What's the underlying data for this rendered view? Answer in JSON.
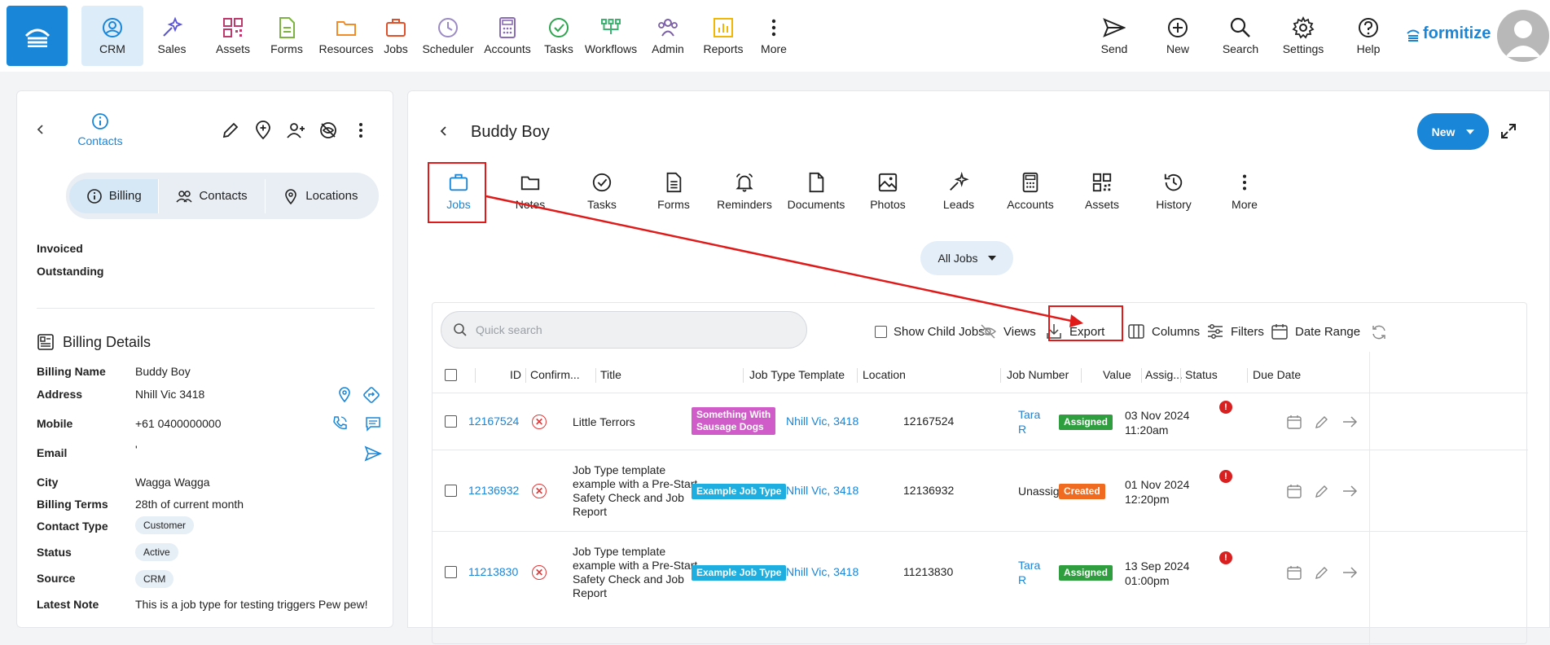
{
  "nav": {
    "items": [
      {
        "label": "CRM",
        "icon": "crm-icon",
        "color": "#1a86d8"
      },
      {
        "label": "Sales",
        "icon": "sales-icon",
        "color": "#5a55d6"
      },
      {
        "label": "Assets",
        "icon": "assets-icon",
        "color": "#c0396b"
      },
      {
        "label": "Forms",
        "icon": "forms-icon",
        "color": "#7cb342"
      },
      {
        "label": "Resources",
        "icon": "folder-icon",
        "color": "#f28c28"
      },
      {
        "label": "Jobs",
        "icon": "briefcase-icon",
        "color": "#e0502a"
      },
      {
        "label": "Scheduler",
        "icon": "clock-icon",
        "color": "#9b8ac4"
      },
      {
        "label": "Accounts",
        "icon": "calculator-icon",
        "color": "#8a6bb5"
      },
      {
        "label": "Tasks",
        "icon": "check-circle-icon",
        "color": "#2ea44f"
      },
      {
        "label": "Workflows",
        "icon": "workflow-icon",
        "color": "#3cb371"
      },
      {
        "label": "Admin",
        "icon": "people-icon",
        "color": "#7b5ea7"
      },
      {
        "label": "Reports",
        "icon": "chart-icon",
        "color": "#f2b705"
      },
      {
        "label": "More",
        "icon": "more-vertical-icon",
        "color": "#222222"
      }
    ],
    "right": [
      {
        "label": "Send",
        "icon": "send-icon"
      },
      {
        "label": "New",
        "icon": "plus-circle-icon"
      },
      {
        "label": "Search",
        "icon": "search-icon"
      },
      {
        "label": "Settings",
        "icon": "gear-icon"
      },
      {
        "label": "Help",
        "icon": "help-icon"
      }
    ],
    "brand": "formitize",
    "brand_color": "#1a86d8"
  },
  "left": {
    "header_label": "Contacts",
    "tabs": [
      {
        "label": "Billing"
      },
      {
        "label": "Contacts"
      },
      {
        "label": "Locations"
      }
    ],
    "summary": [
      {
        "label": "Invoiced"
      },
      {
        "label": "Outstanding"
      }
    ],
    "billing_title": "Billing Details",
    "fields": {
      "billing_name": {
        "label": "Billing Name",
        "value": "Buddy Boy"
      },
      "address": {
        "label": "Address",
        "value": "Nhill Vic 3418"
      },
      "mobile": {
        "label": "Mobile",
        "value": "+61 0400000000"
      },
      "email": {
        "label": "Email",
        "value": "'"
      },
      "city": {
        "label": "City",
        "value": "Wagga Wagga"
      },
      "billing_terms": {
        "label": "Billing Terms",
        "value": "28th of current month"
      },
      "contact_type": {
        "label": "Contact Type",
        "value": "Customer"
      },
      "status": {
        "label": "Status",
        "value": "Active"
      },
      "source": {
        "label": "Source",
        "value": "CRM"
      },
      "latest_note": {
        "label": "Latest Note",
        "value": "This is a job type for testing triggers Pew pew!"
      }
    }
  },
  "right": {
    "title": "Buddy Boy",
    "new_button": "New",
    "tabs": [
      {
        "label": "Jobs",
        "icon": "briefcase-icon"
      },
      {
        "label": "Notes",
        "icon": "note-icon"
      },
      {
        "label": "Tasks",
        "icon": "check-circle-icon"
      },
      {
        "label": "Forms",
        "icon": "document-icon"
      },
      {
        "label": "Reminders",
        "icon": "bell-icon"
      },
      {
        "label": "Documents",
        "icon": "file-icon"
      },
      {
        "label": "Photos",
        "icon": "image-icon"
      },
      {
        "label": "Leads",
        "icon": "sparkle-icon"
      },
      {
        "label": "Accounts",
        "icon": "calculator-icon"
      },
      {
        "label": "Assets",
        "icon": "qr-icon"
      },
      {
        "label": "History",
        "icon": "history-icon"
      },
      {
        "label": "More",
        "icon": "more-vertical-icon"
      }
    ],
    "filter": "All Jobs",
    "search_placeholder": "Quick search",
    "toolbar": {
      "show_child_jobs": "Show Child Jobs",
      "views": "Views",
      "export": "Export",
      "columns": "Columns",
      "filters": "Filters",
      "date_range": "Date Range"
    },
    "columns": [
      "ID",
      "Confirm...",
      "Title",
      "Job Type Template",
      "Location",
      "Job Number",
      "Value",
      "Assig...",
      "Status",
      "Due Date"
    ],
    "rows": [
      {
        "id": "12167524",
        "title_lines": [
          "Little Terrors"
        ],
        "template_lines": [
          "Something With",
          "Sausage Dogs"
        ],
        "template_color": "#d05cc9",
        "location": "Nhill Vic, 3418",
        "job_number": "12167524",
        "assignee_lines": [
          "Tara",
          "R"
        ],
        "status": "Assigned",
        "status_color": "#2e9e3f",
        "due_date": "03 Nov 2024",
        "due_time": "11:20am"
      },
      {
        "id": "12136932",
        "title_lines": [
          "Job Type template",
          "example with a Pre-Start",
          "Safety Check and Job",
          "Report"
        ],
        "template_lines": [
          "Example Job Type"
        ],
        "template_color": "#1eaee0",
        "location": "Nhill Vic, 3418",
        "job_number": "12136932",
        "assignee_lines": [
          "Unassig"
        ],
        "status": "Created",
        "status_color": "#f06a1f",
        "due_date": "01 Nov 2024",
        "due_time": "12:20pm"
      },
      {
        "id": "11213830",
        "title_lines": [
          "Job Type template",
          "example with a Pre-Start",
          "Safety Check and Job",
          "Report"
        ],
        "template_lines": [
          "Example Job Type"
        ],
        "template_color": "#1eaee0",
        "location": "Nhill Vic, 3418",
        "job_number": "11213830",
        "assignee_lines": [
          "Tara",
          "R"
        ],
        "status": "Assigned",
        "status_color": "#2e9e3f",
        "due_date": "13 Sep 2024",
        "due_time": "01:00pm"
      }
    ]
  },
  "annotation_color": "#e01919"
}
